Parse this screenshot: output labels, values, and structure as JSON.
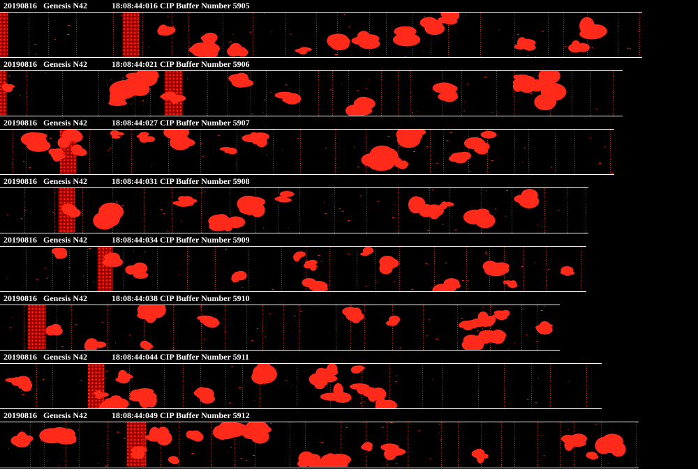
{
  "colors": {
    "background": "#000000",
    "text": "#ffffff",
    "particle": "#ff2a1a"
  },
  "buffers": [
    {
      "date": "20190816",
      "probe": "Genesis N42",
      "time": "18:08:44:016",
      "label": "CIP Buffer Number",
      "number": "5905"
    },
    {
      "date": "20190816",
      "probe": "Genesis N42",
      "time": "18:08:44:021",
      "label": "CIP Buffer Number",
      "number": "5906"
    },
    {
      "date": "20190816",
      "probe": "Genesis N42",
      "time": "18:08:44:027",
      "label": "CIP Buffer Number",
      "number": "5907"
    },
    {
      "date": "20190816",
      "probe": "Genesis N42",
      "time": "18:08:44:031",
      "label": "CIP Buffer Number",
      "number": "5908"
    },
    {
      "date": "20190816",
      "probe": "Genesis N42",
      "time": "18:08:44:034",
      "label": "CIP Buffer Number",
      "number": "5909"
    },
    {
      "date": "20190816",
      "probe": "Genesis N42",
      "time": "18:08:44:038",
      "label": "CIP Buffer Number",
      "number": "5910"
    },
    {
      "date": "20190816",
      "probe": "Genesis N42",
      "time": "18:08:44:044",
      "label": "CIP Buffer Number",
      "number": "5911"
    },
    {
      "date": "20190816",
      "probe": "Genesis N42",
      "time": "18:08:44:049",
      "label": "CIP Buffer Number",
      "number": "5912"
    }
  ]
}
